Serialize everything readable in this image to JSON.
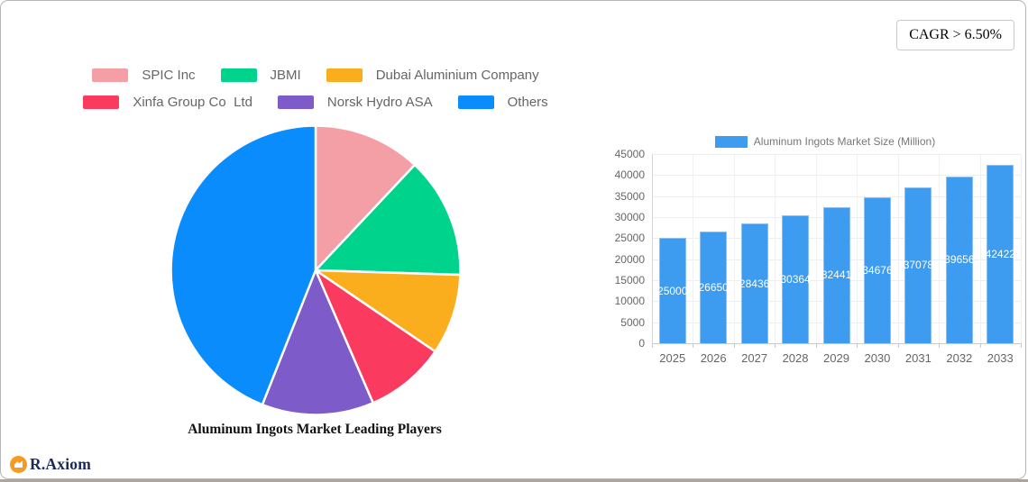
{
  "cagr": {
    "label": "CAGR > 6.50%"
  },
  "brand": {
    "name": "R.Axiom",
    "icon": "growth-chart-icon",
    "icon_color": "#f59b24"
  },
  "chart_data": [
    {
      "type": "pie",
      "title": "Aluminum Ingots Market Leading Players",
      "labels": [
        "SPIC Inc",
        "JBMI",
        "Dubai Aluminium Company",
        "Xinfa Group Co  Ltd",
        "Norsk Hydro ASA",
        "Others"
      ],
      "values_percent": [
        12,
        13.5,
        9,
        9,
        12.5,
        44
      ],
      "colors": [
        "#f49ea5",
        "#00d48c",
        "#faae1e",
        "#fa3b5f",
        "#7d5bc8",
        "#0a8cfc"
      ],
      "start_angle_deg": 0,
      "direction": "clockwise",
      "legend_position": "top",
      "slice_gap_color": "#ffffff"
    },
    {
      "type": "bar",
      "legend": "Aluminum Ingots Market Size (Million)",
      "categories": [
        "2025",
        "2026",
        "2027",
        "2028",
        "2029",
        "2030",
        "2031",
        "2032",
        "2033"
      ],
      "values": [
        25000,
        26650,
        28436,
        30364,
        32441,
        34676,
        37078,
        39656,
        42422
      ],
      "ylim": [
        0,
        45000
      ],
      "ytick_step": 5000,
      "bar_color": "#3d9bf0",
      "bar_border_color": "#8cc0f4",
      "value_label_color": "#ffffff",
      "grid": true,
      "legend_position": "top"
    }
  ]
}
